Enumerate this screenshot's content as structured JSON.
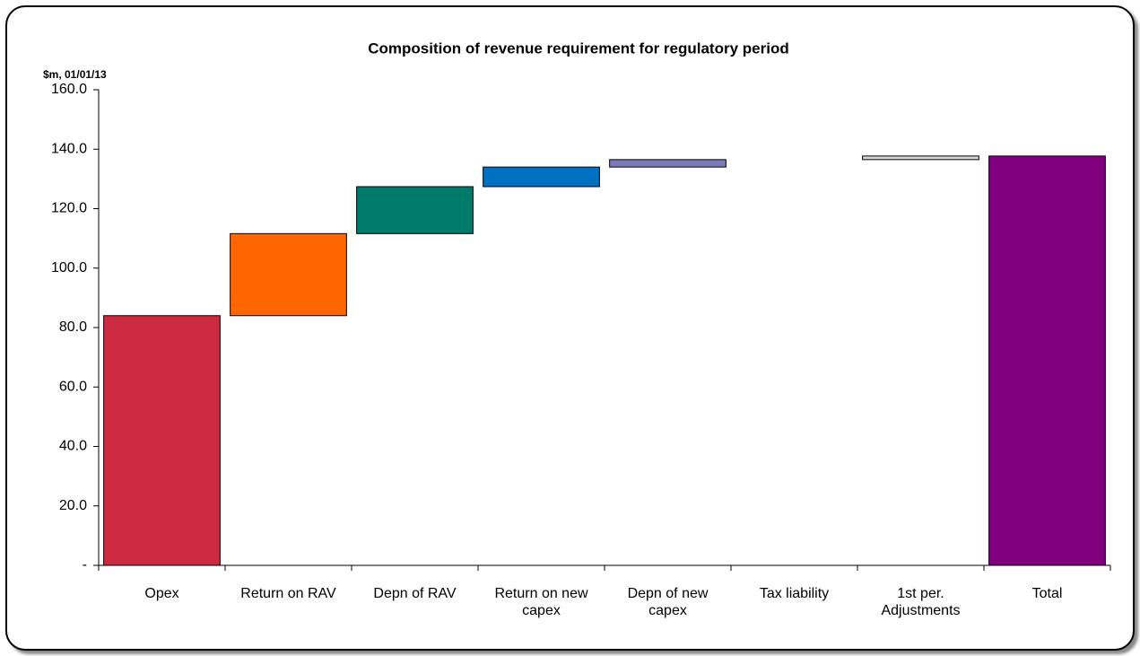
{
  "chart_data": {
    "type": "waterfall",
    "title": "Composition of revenue requirement for regulatory period",
    "y_label": "$m, 01/01/13",
    "categories": [
      "Opex",
      "Return on RAV",
      "Depn of RAV",
      "Return on new\ncapex",
      "Depn of new\ncapex",
      "Tax liability",
      "1st per.\nAdjustments",
      "Total"
    ],
    "values": [
      84.0,
      27.6,
      15.8,
      6.6,
      2.5,
      0,
      1.2,
      137.7
    ],
    "colors": [
      "#cc2a41",
      "#ff6600",
      "#007a6a",
      "#0070c0",
      "#7b7bb5",
      "#ffffff",
      "#d8d8d8",
      "#800080"
    ],
    "ylim": [
      0,
      160
    ],
    "yticks": [
      {
        "value": 0,
        "label": "-"
      },
      {
        "value": 20,
        "label": "20.0"
      },
      {
        "value": 40,
        "label": "40.0"
      },
      {
        "value": 60,
        "label": "60.0"
      },
      {
        "value": 80,
        "label": "80.0"
      },
      {
        "value": 100,
        "label": "100.0"
      },
      {
        "value": 120,
        "label": "120.0"
      },
      {
        "value": 140,
        "label": "140.0"
      },
      {
        "value": 160,
        "label": "160.0"
      }
    ]
  }
}
